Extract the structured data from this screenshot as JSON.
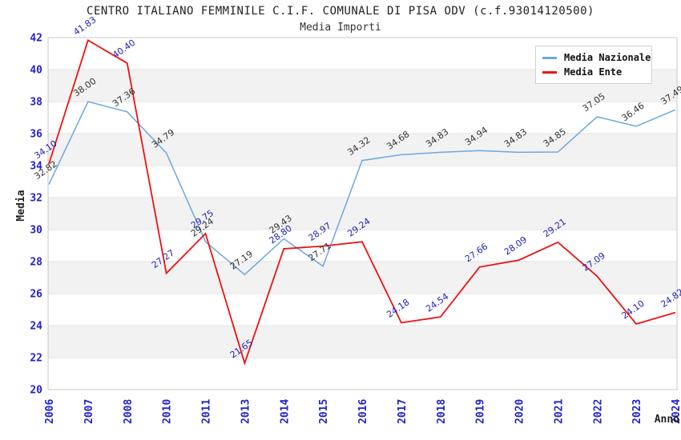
{
  "page": {
    "background": "#ffffff"
  },
  "chart_data": {
    "type": "line",
    "title": "CENTRO ITALIANO FEMMINILE C.I.F. COMUNALE DI PISA ODV (c.f.93014120500)",
    "subtitle": "Media Importi",
    "xlabel": "Anno",
    "ylabel": "Media",
    "categories": [
      "2006",
      "2007",
      "2008",
      "2010",
      "2011",
      "2013",
      "2014",
      "2015",
      "2016",
      "2017",
      "2018",
      "2019",
      "2020",
      "2021",
      "2022",
      "2023",
      "2024"
    ],
    "y_ticks": [
      42,
      40,
      38,
      36,
      34,
      32,
      30,
      28,
      26,
      24,
      22,
      20
    ],
    "ylim": [
      20,
      42
    ],
    "grid": "horizontal-alternating-bands",
    "legend_position": "top-right",
    "series": [
      {
        "name": "Media Nazionale",
        "color": "#6ca7e0",
        "label_color": "#333333",
        "values": [
          32.82,
          38.0,
          37.36,
          34.79,
          29.24,
          27.19,
          29.43,
          27.71,
          34.32,
          34.68,
          34.83,
          34.94,
          34.83,
          34.85,
          37.05,
          36.46,
          37.49
        ]
      },
      {
        "name": "Media Ente",
        "color": "#ee1111",
        "label_color": "#2222bb",
        "values": [
          34.1,
          41.83,
          40.4,
          27.27,
          29.75,
          21.65,
          28.8,
          28.97,
          29.24,
          24.18,
          24.54,
          27.66,
          28.09,
          29.21,
          27.09,
          24.1,
          24.82
        ]
      }
    ],
    "colors": {
      "tick_label": "#2222cc",
      "band": "#f2f2f2",
      "grid_line": "#e2e2e2",
      "plot_border": "#c8c8c8",
      "axis_title": "#222222"
    }
  }
}
